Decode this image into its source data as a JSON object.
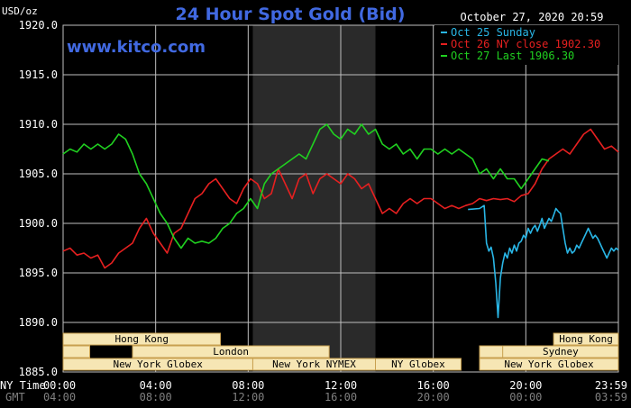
{
  "header": {
    "y_unit": "USD/oz",
    "title": "24 Hour Spot Gold (Bid)",
    "datetime": "October 27, 2020 20:59",
    "site": "www.kitco.com"
  },
  "x_axis": {
    "ny_time_label": "NY Time",
    "gmt_label": "GMT"
  },
  "colors": {
    "background": "#000000",
    "grid": "#bfbfbf",
    "shade": "#2a2a2a",
    "title": "#4169e1",
    "session_fill": "#f6e6b4",
    "session_border": "#c8a050"
  },
  "sessions": [
    {
      "label": "Hong Kong",
      "row": 0,
      "start": 0.0,
      "end": 6.8
    },
    {
      "label": "Hong Kong",
      "row": 0,
      "start": 21.2,
      "end": 24.0
    },
    {
      "label": "",
      "row": 1,
      "start": 0.0,
      "end": 1.15
    },
    {
      "label": "",
      "row": 1,
      "start": 4.4,
      "end": 6.8
    },
    {
      "label": "London",
      "row": 1,
      "start": 3.0,
      "end": 11.5
    },
    {
      "label": "",
      "row": 1,
      "start": 18.0,
      "end": 24.0
    },
    {
      "label": "Sydney",
      "row": 1,
      "start": 19.0,
      "end": 24.0
    },
    {
      "label": "New York Globex",
      "row": 2,
      "start": 0.0,
      "end": 8.2
    },
    {
      "label": "New York NYMEX",
      "row": 2,
      "start": 8.2,
      "end": 13.5
    },
    {
      "label": "NY Globex",
      "row": 2,
      "start": 13.5,
      "end": 17.2
    },
    {
      "label": "New York Globex",
      "row": 2,
      "start": 18.0,
      "end": 24.0
    }
  ],
  "chart_data": {
    "type": "line",
    "title": "24 Hour Spot Gold (Bid)",
    "ylabel": "USD/oz",
    "ylim": [
      1885.0,
      1920.0
    ],
    "yticks": [
      "1885.0",
      "1890.0",
      "1895.0",
      "1900.0",
      "1905.0",
      "1910.0",
      "1915.0",
      "1920.0"
    ],
    "xlim": [
      0,
      24
    ],
    "xticks": [
      {
        "ny": "00:00",
        "gmt": "04:00"
      },
      {
        "ny": "04:00",
        "gmt": "08:00"
      },
      {
        "ny": "08:00",
        "gmt": "12:00"
      },
      {
        "ny": "12:00",
        "gmt": "16:00"
      },
      {
        "ny": "16:00",
        "gmt": "20:00"
      },
      {
        "ny": "20:00",
        "gmt": "00:00"
      },
      {
        "ny": "23:59",
        "gmt": "03:59"
      }
    ],
    "shaded_region": [
      8.2,
      13.5
    ],
    "grid": true,
    "legend": "top-right",
    "series": [
      {
        "name": "Oct 25 Sunday",
        "color": "#29b6e6",
        "x": [
          17.5,
          18.0,
          18.2,
          18.3,
          18.4,
          18.5,
          18.6,
          18.7,
          18.8,
          18.9,
          19.0,
          19.1,
          19.2,
          19.3,
          19.4,
          19.5,
          19.6,
          19.7,
          19.8,
          19.9,
          20.0,
          20.1,
          20.2,
          20.3,
          20.4,
          20.5,
          20.6,
          20.7,
          20.8,
          20.9,
          21.0,
          21.1,
          21.2,
          21.3,
          21.4,
          21.5,
          21.6,
          21.7,
          21.8,
          21.9,
          22.0,
          22.1,
          22.2,
          22.3,
          22.4,
          22.5,
          22.6,
          22.7,
          22.8,
          22.9,
          23.0,
          23.1,
          23.2,
          23.3,
          23.4,
          23.5,
          23.6,
          23.7,
          23.8,
          23.9,
          24.0
        ],
        "values": [
          1901.4,
          1901.5,
          1901.8,
          1898.0,
          1897.2,
          1897.6,
          1896.5,
          1894.0,
          1890.5,
          1894.5,
          1896.0,
          1897.0,
          1896.5,
          1897.5,
          1897.0,
          1897.8,
          1897.2,
          1898.0,
          1898.2,
          1898.8,
          1898.5,
          1899.5,
          1899.0,
          1899.5,
          1899.8,
          1899.2,
          1899.8,
          1900.5,
          1899.5,
          1900.0,
          1900.5,
          1900.2,
          1900.8,
          1901.5,
          1901.2,
          1901.0,
          1899.5,
          1898.0,
          1897.0,
          1897.5,
          1897.0,
          1897.2,
          1897.8,
          1897.5,
          1898.0,
          1898.5,
          1899.0,
          1899.5,
          1899.0,
          1898.5,
          1898.8,
          1898.5,
          1898.0,
          1897.5,
          1897.0,
          1896.5,
          1897.0,
          1897.5,
          1897.2,
          1897.5,
          1897.3
        ]
      },
      {
        "name": "Oct 26 NY close 1902.30",
        "color": "#e62020",
        "x": [
          0.0,
          0.3,
          0.6,
          0.9,
          1.2,
          1.5,
          1.8,
          2.1,
          2.4,
          2.7,
          3.0,
          3.3,
          3.6,
          3.9,
          4.2,
          4.5,
          4.8,
          5.1,
          5.4,
          5.7,
          6.0,
          6.3,
          6.6,
          6.9,
          7.2,
          7.5,
          7.8,
          8.1,
          8.4,
          8.7,
          9.0,
          9.3,
          9.6,
          9.9,
          10.2,
          10.5,
          10.8,
          11.1,
          11.4,
          11.7,
          12.0,
          12.3,
          12.6,
          12.9,
          13.2,
          13.5,
          13.8,
          14.1,
          14.4,
          14.7,
          15.0,
          15.3,
          15.6,
          15.9,
          16.2,
          16.5,
          16.8,
          17.1,
          17.4,
          17.7,
          18.0,
          18.3,
          18.6,
          18.9,
          19.2,
          19.5,
          19.8,
          20.1,
          20.4,
          20.7,
          21.0,
          21.3,
          21.6,
          21.9,
          22.2,
          22.5,
          22.8,
          23.1,
          23.4,
          23.7,
          24.0
        ],
        "values": [
          1897.2,
          1897.5,
          1896.8,
          1897.0,
          1896.5,
          1896.8,
          1895.5,
          1896.0,
          1897.0,
          1897.5,
          1898.0,
          1899.5,
          1900.5,
          1899.0,
          1898.0,
          1897.0,
          1899.0,
          1899.5,
          1901.0,
          1902.5,
          1903.0,
          1904.0,
          1904.5,
          1903.5,
          1902.5,
          1902.0,
          1903.5,
          1904.5,
          1904.0,
          1902.5,
          1903.0,
          1905.5,
          1904.0,
          1902.5,
          1904.5,
          1905.0,
          1903.0,
          1904.5,
          1905.0,
          1904.5,
          1904.0,
          1905.0,
          1904.5,
          1903.5,
          1904.0,
          1902.5,
          1901.0,
          1901.5,
          1901.0,
          1902.0,
          1902.5,
          1902.0,
          1902.5,
          1902.5,
          1902.0,
          1901.5,
          1901.8,
          1901.5,
          1901.8,
          1902.0,
          1902.5,
          1902.3,
          1902.5,
          1902.4,
          1902.5,
          1902.2,
          1902.8,
          1903.0,
          1904.0,
          1905.5,
          1906.5,
          1907.0,
          1907.5,
          1907.0,
          1908.0,
          1909.0,
          1909.5,
          1908.5,
          1907.5,
          1907.8,
          1907.2
        ]
      },
      {
        "name": "Oct 27 Last 1906.30",
        "color": "#20d020",
        "x": [
          0.0,
          0.3,
          0.6,
          0.9,
          1.2,
          1.5,
          1.8,
          2.1,
          2.4,
          2.7,
          3.0,
          3.3,
          3.6,
          3.9,
          4.2,
          4.5,
          4.8,
          5.1,
          5.4,
          5.7,
          6.0,
          6.3,
          6.6,
          6.9,
          7.2,
          7.5,
          7.8,
          8.1,
          8.4,
          8.7,
          9.0,
          9.3,
          9.6,
          9.9,
          10.2,
          10.5,
          10.8,
          11.1,
          11.4,
          11.7,
          12.0,
          12.3,
          12.6,
          12.9,
          13.2,
          13.5,
          13.8,
          14.1,
          14.4,
          14.7,
          15.0,
          15.3,
          15.6,
          15.9,
          16.2,
          16.5,
          16.8,
          17.1,
          17.4,
          17.7,
          18.0,
          18.3,
          18.6,
          18.9,
          19.2,
          19.5,
          19.8,
          20.1,
          20.4,
          20.7,
          21.0
        ],
        "values": [
          1907.0,
          1907.5,
          1907.2,
          1908.0,
          1907.5,
          1908.0,
          1907.5,
          1908.0,
          1909.0,
          1908.5,
          1907.0,
          1905.0,
          1904.0,
          1902.5,
          1901.0,
          1900.0,
          1898.5,
          1897.5,
          1898.5,
          1898.0,
          1898.2,
          1898.0,
          1898.5,
          1899.5,
          1900.0,
          1901.0,
          1901.5,
          1902.5,
          1901.5,
          1904.0,
          1905.0,
          1905.5,
          1906.0,
          1906.5,
          1907.0,
          1906.5,
          1908.0,
          1909.5,
          1910.0,
          1909.0,
          1908.5,
          1909.5,
          1909.0,
          1910.0,
          1909.0,
          1909.5,
          1908.0,
          1907.5,
          1908.0,
          1907.0,
          1907.5,
          1906.5,
          1907.5,
          1907.5,
          1907.0,
          1907.5,
          1907.0,
          1907.5,
          1907.0,
          1906.5,
          1905.0,
          1905.5,
          1904.5,
          1905.5,
          1904.5,
          1904.5,
          1903.5,
          1904.5,
          1905.5,
          1906.5,
          1906.3
        ]
      }
    ]
  }
}
